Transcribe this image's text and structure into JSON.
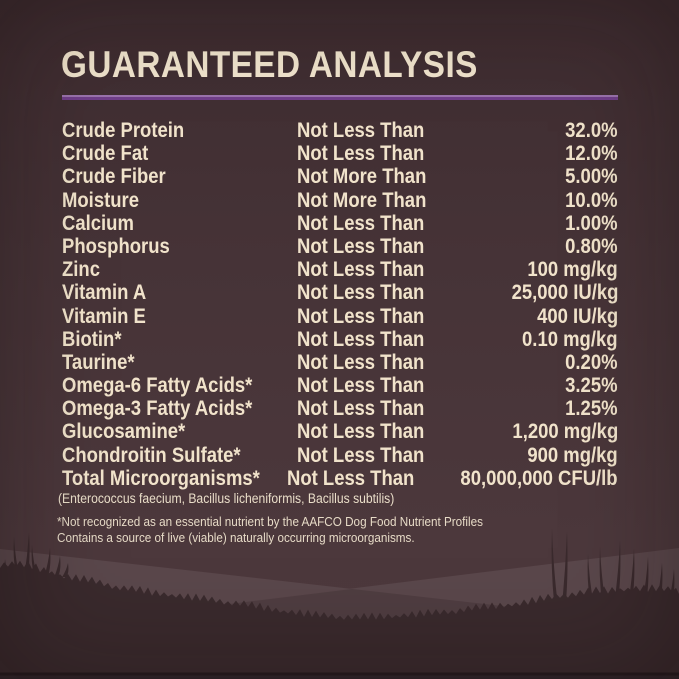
{
  "title": "GUARANTEED ANALYSIS",
  "colors": {
    "background": "#463336",
    "text_cream": "#f1e3cb",
    "accent_purple": "#7b4a8f",
    "accent_purple_light": "#9b74ad",
    "hill_light": "#5a474b",
    "hill_shadow": "#4f3d41",
    "grass_dark": "#3a2a2d"
  },
  "table": {
    "rows": [
      {
        "nutrient": "Crude Protein",
        "qualifier": "Not Less Than",
        "value": "32.0%"
      },
      {
        "nutrient": "Crude Fat",
        "qualifier": "Not Less Than",
        "value": "12.0%"
      },
      {
        "nutrient": "Crude Fiber",
        "qualifier": "Not More Than",
        "value": "5.00%"
      },
      {
        "nutrient": "Moisture",
        "qualifier": "Not More Than",
        "value": "10.0%"
      },
      {
        "nutrient": "Calcium",
        "qualifier": "Not Less Than",
        "value": "1.00%"
      },
      {
        "nutrient": "Phosphorus",
        "qualifier": "Not Less Than",
        "value": "0.80%"
      },
      {
        "nutrient": "Zinc",
        "qualifier": "Not Less Than",
        "value": "100 mg/kg"
      },
      {
        "nutrient": "Vitamin A",
        "qualifier": "Not Less Than",
        "value": "25,000 IU/kg"
      },
      {
        "nutrient": "Vitamin E",
        "qualifier": "Not Less Than",
        "value": "400 IU/kg"
      },
      {
        "nutrient": "Biotin*",
        "qualifier": "Not Less Than",
        "value": "0.10 mg/kg"
      },
      {
        "nutrient": "Taurine*",
        "qualifier": "Not Less Than",
        "value": "0.20%"
      },
      {
        "nutrient": "Omega-6 Fatty Acids*",
        "qualifier": "Not Less Than",
        "value": "3.25%"
      },
      {
        "nutrient": "Omega-3 Fatty Acids*",
        "qualifier": "Not Less Than",
        "value": "1.25%"
      },
      {
        "nutrient": "Glucosamine*",
        "qualifier": "Not Less Than",
        "value": "1,200 mg/kg"
      },
      {
        "nutrient": "Chondroitin Sulfate*",
        "qualifier": "Not Less Than",
        "value": "900 mg/kg"
      },
      {
        "nutrient": "Total Microorganisms*",
        "qualifier": "Not Less Than",
        "value": "80,000,000 CFU/lb"
      }
    ]
  },
  "footnotes": {
    "species": "(Enterococcus faecium, Bacillus licheniformis, Bacillus subtilis)",
    "line1": "*Not recognized as an essential nutrient by the AAFCO Dog Food Nutrient Profiles",
    "line2": "Contains a source of live (viable) naturally occurring microorganisms."
  }
}
